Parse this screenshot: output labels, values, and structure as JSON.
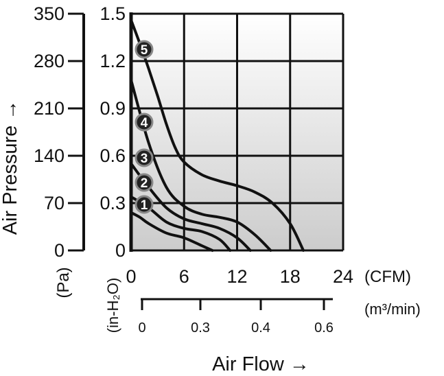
{
  "chart_data": {
    "type": "line",
    "xlabel": "Air Flow →",
    "ylabel": "Air Pressure →",
    "x_unit_primary": "(CFM)",
    "x_unit_secondary": "(m³/min)",
    "y_unit_pa": "(Pa)",
    "y_unit_inh2o": "(in-H₂O)",
    "xlim": [
      0,
      24
    ],
    "ylim": [
      0,
      1.5
    ],
    "x_ticks_cfm": [
      0,
      6,
      12,
      18,
      24
    ],
    "x_ticks_m3min": [
      0,
      0.3,
      0.4,
      0.6
    ],
    "y_ticks_inh2o": [
      0,
      0.3,
      0.6,
      0.9,
      1.2,
      1.5
    ],
    "y_ticks_pa": [
      0,
      70,
      140,
      210,
      280,
      350
    ],
    "grid": true,
    "series": [
      {
        "name": "1",
        "x": [
          0,
          1,
          2,
          4,
          6,
          8,
          9.2
        ],
        "y": [
          0.24,
          0.21,
          0.17,
          0.11,
          0.08,
          0.03,
          0
        ]
      },
      {
        "name": "2",
        "x": [
          0,
          2,
          4,
          6,
          8,
          10,
          11.2
        ],
        "y": [
          0.34,
          0.27,
          0.18,
          0.14,
          0.12,
          0.07,
          0
        ]
      },
      {
        "name": "3",
        "x": [
          0,
          2,
          4,
          6,
          8,
          10,
          12,
          13.5
        ],
        "y": [
          0.55,
          0.4,
          0.27,
          0.2,
          0.17,
          0.14,
          0.08,
          0
        ]
      },
      {
        "name": "4",
        "x": [
          0,
          2,
          4,
          6,
          8,
          10,
          12,
          14,
          15.8
        ],
        "y": [
          1.08,
          0.68,
          0.4,
          0.28,
          0.23,
          0.21,
          0.18,
          0.1,
          0
        ]
      },
      {
        "name": "5",
        "x": [
          0,
          1,
          2,
          3,
          4,
          5,
          6,
          8,
          10,
          12,
          14,
          16,
          18,
          19.5
        ],
        "y": [
          1.46,
          1.31,
          1.15,
          0.98,
          0.8,
          0.65,
          0.56,
          0.48,
          0.44,
          0.41,
          0.37,
          0.3,
          0.17,
          0
        ]
      }
    ]
  }
}
